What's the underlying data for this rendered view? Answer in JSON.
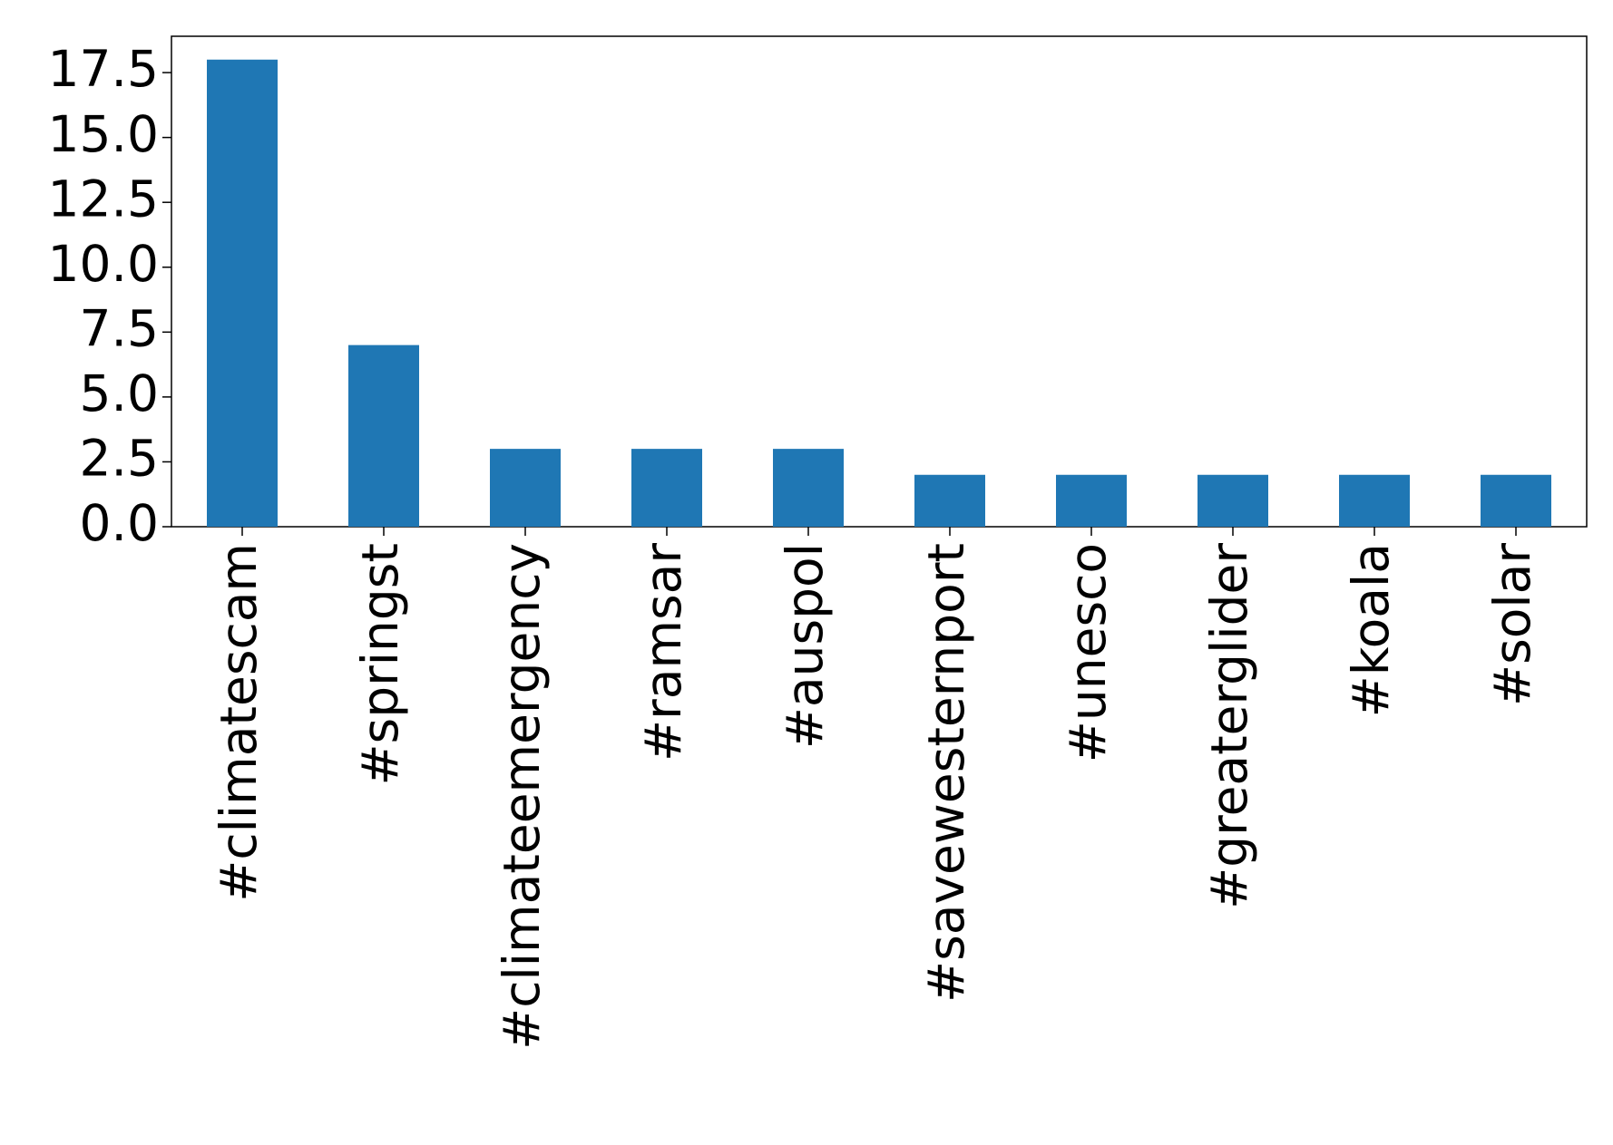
{
  "chart_data": {
    "type": "bar",
    "categories": [
      "#climatescam",
      "#springst",
      "#climateemergency",
      "#ramsar",
      "#auspol",
      "#savewesternport",
      "#unesco",
      "#greaterglider",
      "#koala",
      "#solar"
    ],
    "values": [
      18,
      7,
      3,
      3,
      3,
      2,
      2,
      2,
      2,
      2
    ],
    "color": "#1f77b4",
    "ylim": [
      0,
      18.9
    ],
    "yticks": [
      {
        "value": 0,
        "label": "0.0"
      },
      2.5,
      {
        "value": 5,
        "label": "5.0"
      },
      7.5,
      {
        "value": 10,
        "label": "10.0"
      },
      12.5,
      {
        "value": 15,
        "label": "15.0"
      },
      17.5
    ],
    "grid": false
  }
}
